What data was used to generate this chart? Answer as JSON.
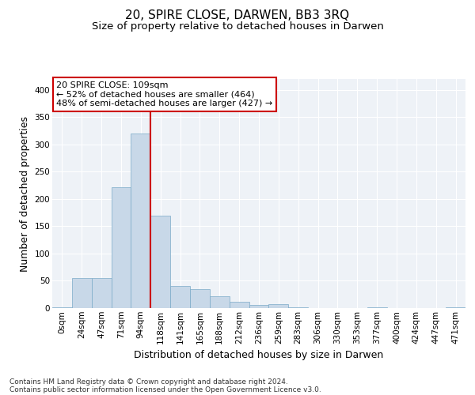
{
  "title": "20, SPIRE CLOSE, DARWEN, BB3 3RQ",
  "subtitle": "Size of property relative to detached houses in Darwen",
  "xlabel": "Distribution of detached houses by size in Darwen",
  "ylabel": "Number of detached properties",
  "footnote1": "Contains HM Land Registry data © Crown copyright and database right 2024.",
  "footnote2": "Contains public sector information licensed under the Open Government Licence v3.0.",
  "bar_labels": [
    "0sqm",
    "24sqm",
    "47sqm",
    "71sqm",
    "94sqm",
    "118sqm",
    "141sqm",
    "165sqm",
    "188sqm",
    "212sqm",
    "236sqm",
    "259sqm",
    "283sqm",
    "306sqm",
    "330sqm",
    "353sqm",
    "377sqm",
    "400sqm",
    "424sqm",
    "447sqm",
    "471sqm"
  ],
  "bar_values": [
    2,
    55,
    55,
    222,
    320,
    170,
    40,
    35,
    22,
    12,
    6,
    7,
    1,
    0,
    0,
    0,
    1,
    0,
    0,
    0,
    2
  ],
  "bar_color": "#c8d8e8",
  "bar_edge_color": "#7aaac8",
  "vline_color": "#cc0000",
  "vline_x_index": 4.5,
  "annotation_text": "20 SPIRE CLOSE: 109sqm\n← 52% of detached houses are smaller (464)\n48% of semi-detached houses are larger (427) →",
  "annotation_box_color": "#ffffff",
  "annotation_box_edge": "#cc0000",
  "ylim": [
    0,
    420
  ],
  "yticks": [
    0,
    50,
    100,
    150,
    200,
    250,
    300,
    350,
    400
  ],
  "background_color": "#eef2f7",
  "grid_color": "#ffffff",
  "title_fontsize": 11,
  "subtitle_fontsize": 9.5,
  "axis_label_fontsize": 9,
  "tick_fontsize": 7.5,
  "footnote_fontsize": 6.5,
  "annotation_fontsize": 8
}
